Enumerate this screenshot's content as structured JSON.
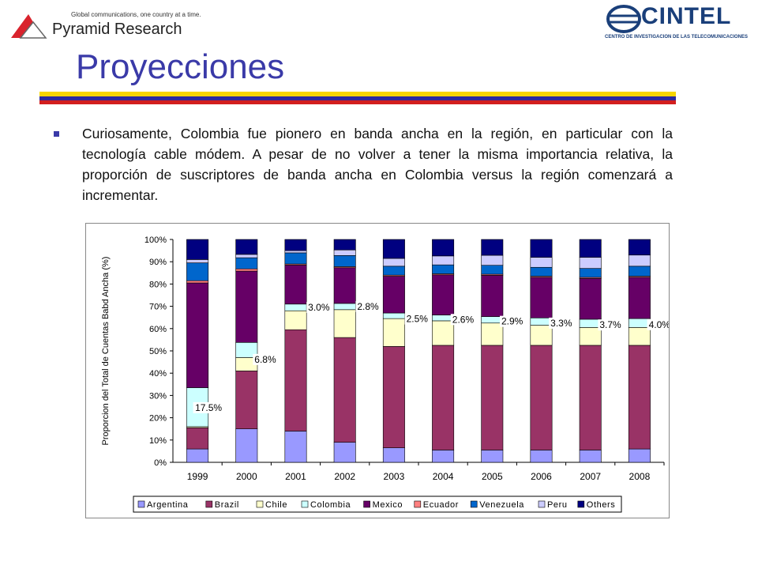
{
  "header": {
    "left_tagline": "Global communications, one country at a time.",
    "left_brand": "Pyramid Research",
    "right_brand": "CINTEL",
    "right_sub": "CENTRO DE INVESTIGACION DE LAS TELECOMUNICACIONES"
  },
  "slide": {
    "title": "Proyecciones",
    "bullet_text": "Curiosamente, Colombia fue pionero en banda ancha en la región, en particular con la tecnología cable módem. A pesar de no volver a tener la misma importancia relativa, la proporción de suscriptores de banda ancha en Colombia versus la región comenzará a incrementar.",
    "stripe_colors": [
      "#f6d500",
      "#2a2aa0",
      "#d21f1f"
    ]
  },
  "chart_data": {
    "type": "bar",
    "stacked": true,
    "categories": [
      "1999",
      "2000",
      "2001",
      "2002",
      "2003",
      "2004",
      "2005",
      "2006",
      "2007",
      "2008"
    ],
    "ylabel": "Proporcion del Total de Cuentas Babd Ancha (%)",
    "ylim": [
      0,
      100
    ],
    "yticks": [
      "0%",
      "10%",
      "20%",
      "30%",
      "40%",
      "50%",
      "60%",
      "70%",
      "80%",
      "90%",
      "100%"
    ],
    "legend_position": "bottom",
    "series": [
      {
        "name": "Argentina",
        "color": "#9999ff",
        "values": [
          6,
          15,
          14,
          9,
          6.5,
          5.5,
          5.5,
          5.5,
          5.5,
          6
        ]
      },
      {
        "name": "Brazil",
        "color": "#993366",
        "values": [
          9.5,
          26,
          45.5,
          47,
          45.5,
          47,
          47,
          47,
          47,
          46.5
        ]
      },
      {
        "name": "Chile",
        "color": "#ffffcc",
        "values": [
          0.5,
          6,
          8.5,
          12.5,
          12.5,
          11,
          10,
          9,
          8,
          8
        ]
      },
      {
        "name": "Colombia",
        "color": "#ccffff",
        "values": [
          17.5,
          6.8,
          3.0,
          2.8,
          2.5,
          2.6,
          2.9,
          3.3,
          3.7,
          4.0
        ]
      },
      {
        "name": "Mexico",
        "color": "#660066",
        "values": [
          47,
          32,
          17.5,
          16,
          16.5,
          18,
          18.5,
          18.2,
          18.3,
          18.5
        ]
      },
      {
        "name": "Ecuador",
        "color": "#ff8080",
        "values": [
          1,
          1,
          0.5,
          0.5,
          0.5,
          0.5,
          0.5,
          0.5,
          0.5,
          0.5
        ]
      },
      {
        "name": "Venezuela",
        "color": "#0066cc",
        "values": [
          8,
          5,
          5,
          5,
          4,
          4,
          4,
          4,
          4,
          4.5
        ]
      },
      {
        "name": "Peru",
        "color": "#ccccff",
        "values": [
          1.5,
          1.5,
          1,
          2.5,
          3.5,
          4,
          4.5,
          4.5,
          5,
          5
        ]
      },
      {
        "name": "Others",
        "color": "#000080",
        "values": [
          9,
          6.7,
          5,
          4.7,
          8.5,
          7.4,
          7.1,
          8,
          8,
          7
        ]
      }
    ],
    "annotations": [
      "17.5%",
      "6.8%",
      "3.0%",
      "2.8%",
      "2.5%",
      "2.6%",
      "2.9%",
      "3.3%",
      "3.7%",
      "4.0%"
    ]
  }
}
